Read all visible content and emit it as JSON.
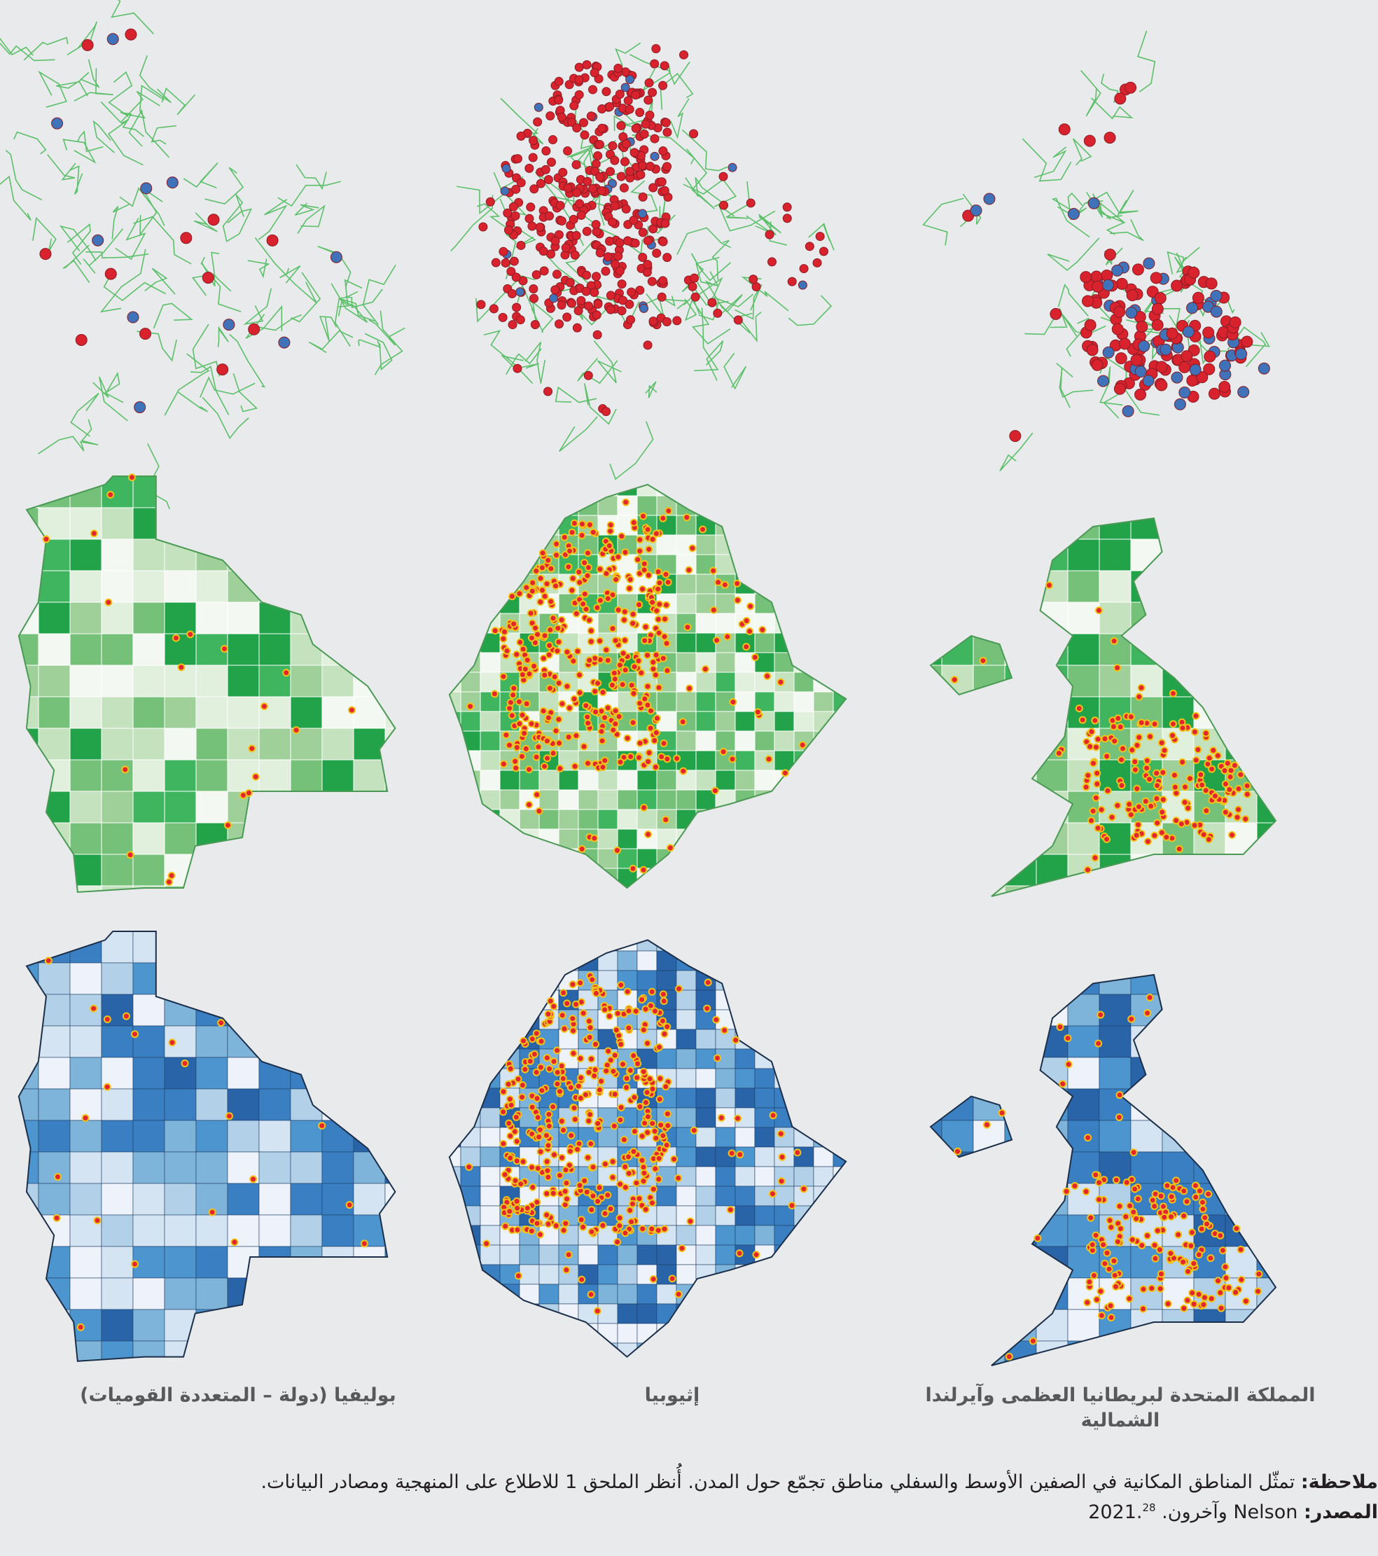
{
  "columns": [
    {
      "label": "بوليفيا (دولة – المتعددة القوميات)"
    },
    {
      "label": "إثيوبيا"
    },
    {
      "label": "المملكة المتحدة لبريطانيا العظمى وآيرلندا الشمالية"
    }
  ],
  "note": {
    "label": "ملاحظة:",
    "text": "تمثّل المناطق المكانية في الصفين الأوسط والسفلي مناطق تجمّع حول المدن. أُنظر الملحق 1 للاطلاع على المنهجية ومصادر البيانات."
  },
  "source": {
    "label": "المصدر:",
    "text": "Nelson وآخرون. 2021.",
    "ref": "28"
  }
}
